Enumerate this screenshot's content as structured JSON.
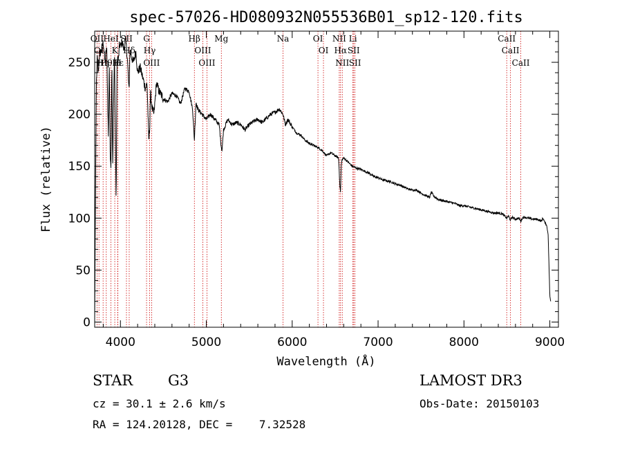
{
  "chart_data": {
    "type": "line",
    "title": "spec-57026-HD080932N055536B01_sp12-120.fits",
    "xlabel": "Wavelength (Å)",
    "ylabel": "Flux (relative)",
    "xlim": [
      3700,
      9100
    ],
    "ylim": [
      -5,
      280
    ],
    "xticks": [
      4000,
      5000,
      6000,
      7000,
      8000,
      9000
    ],
    "yticks": [
      0,
      50,
      100,
      150,
      200,
      250
    ],
    "series": [
      {
        "name": "flux",
        "x": [
          3700,
          3710,
          3720,
          3730,
          3740,
          3760,
          3780,
          3800,
          3820,
          3840,
          3860,
          3870,
          3880,
          3890,
          3900,
          3910,
          3930,
          3950,
          3960,
          3968,
          3975,
          3990,
          4000,
          4020,
          4040,
          4060,
          4080,
          4101,
          4110,
          4130,
          4150,
          4180,
          4200,
          4230,
          4260,
          4290,
          4310,
          4330,
          4340,
          4350,
          4370,
          4390,
          4420,
          4450,
          4480,
          4500,
          4550,
          4600,
          4650,
          4700,
          4750,
          4800,
          4840,
          4861,
          4880,
          4900,
          4950,
          5000,
          5050,
          5100,
          5150,
          5172,
          5183,
          5200,
          5250,
          5300,
          5350,
          5400,
          5450,
          5500,
          5550,
          5600,
          5650,
          5700,
          5750,
          5800,
          5850,
          5893,
          5920,
          5950,
          6000,
          6050,
          6100,
          6150,
          6200,
          6250,
          6300,
          6350,
          6400,
          6450,
          6500,
          6540,
          6556,
          6563,
          6570,
          6580,
          6600,
          6650,
          6700,
          6750,
          6800,
          6850,
          6900,
          6950,
          7000,
          7050,
          7100,
          7150,
          7200,
          7250,
          7300,
          7350,
          7400,
          7450,
          7500,
          7550,
          7600,
          7620,
          7650,
          7700,
          7750,
          7800,
          7850,
          7900,
          7950,
          8000,
          8050,
          8100,
          8150,
          8200,
          8250,
          8300,
          8350,
          8400,
          8450,
          8498,
          8520,
          8542,
          8560,
          8600,
          8640,
          8662,
          8680,
          8700,
          8750,
          8800,
          8850,
          8880,
          8900,
          8920,
          8940,
          8960,
          8980,
          9000,
          9010
        ],
        "y": [
          0,
          130,
          230,
          255,
          240,
          258,
          262,
          270,
          250,
          265,
          175,
          255,
          165,
          150,
          255,
          150,
          262,
          110,
          250,
          255,
          250,
          268,
          265,
          270,
          262,
          272,
          255,
          220,
          262,
          255,
          250,
          260,
          240,
          245,
          235,
          225,
          230,
          175,
          185,
          220,
          205,
          200,
          230,
          222,
          218,
          215,
          212,
          220,
          218,
          210,
          225,
          222,
          205,
          175,
          212,
          205,
          200,
          195,
          200,
          195,
          190,
          170,
          165,
          185,
          195,
          190,
          192,
          190,
          185,
          190,
          193,
          195,
          192,
          196,
          200,
          202,
          205,
          200,
          190,
          195,
          188,
          182,
          180,
          175,
          172,
          170,
          168,
          165,
          160,
          163,
          160,
          158,
          130,
          125,
          150,
          156,
          158,
          154,
          150,
          148,
          147,
          145,
          143,
          140,
          139,
          137,
          136,
          135,
          133,
          132,
          130,
          128,
          127,
          127,
          124,
          122,
          120,
          125,
          121,
          118,
          117,
          116,
          115,
          114,
          112,
          112,
          111,
          110,
          109,
          108,
          107,
          106,
          105,
          105,
          104,
          100,
          102,
          98,
          101,
          99,
          100,
          97,
          100,
          101,
          100,
          99,
          99,
          98,
          97,
          100,
          96,
          94,
          85,
          25,
          20
        ]
      }
    ],
    "lines": [
      {
        "x": 3727,
        "label": "OII"
      },
      {
        "x": 3750,
        "label": "OI"
      },
      {
        "x": 3798,
        "label": "Hη"
      },
      {
        "x": 3835,
        "label": "Hθ"
      },
      {
        "x": 3889,
        "label": "HeI"
      },
      {
        "x": 3934,
        "label": "K"
      },
      {
        "x": 3968,
        "label": "H"
      },
      {
        "x": 3970,
        "label": "Hε"
      },
      {
        "x": 4070,
        "label": "SII"
      },
      {
        "x": 4102,
        "label": "Hδ"
      },
      {
        "x": 4304,
        "label": "G"
      },
      {
        "x": 4340,
        "label": "Hγ"
      },
      {
        "x": 4363,
        "label": "OIII"
      },
      {
        "x": 4861,
        "label": "Hβ"
      },
      {
        "x": 4959,
        "label": "OIII"
      },
      {
        "x": 5007,
        "label": "OIII"
      },
      {
        "x": 5175,
        "label": "Mg"
      },
      {
        "x": 5893,
        "label": "Na"
      },
      {
        "x": 6300,
        "label": "OI"
      },
      {
        "x": 6364,
        "label": "OI"
      },
      {
        "x": 6548,
        "label": "NII"
      },
      {
        "x": 6563,
        "label": "Hα"
      },
      {
        "x": 6583,
        "label": "NII"
      },
      {
        "x": 6707,
        "label": "Li"
      },
      {
        "x": 6716,
        "label": "SII"
      },
      {
        "x": 6731,
        "label": "SII"
      },
      {
        "x": 8498,
        "label": "CaII"
      },
      {
        "x": 8542,
        "label": "CaII"
      },
      {
        "x": 8662,
        "label": "CaII"
      }
    ]
  },
  "info": {
    "object_type": "STAR",
    "subclass": "G3",
    "survey": "LAMOST DR3",
    "cz": "cz = 30.1 ± 2.6 km/s",
    "obs_date": "Obs-Date: 20150103",
    "radec": "RA = 124.20128, DEC =    7.32528"
  },
  "colors": {
    "spectrum": "#000000",
    "marker_lines": "#cc0000",
    "axes": "#000000",
    "background": "#ffffff"
  }
}
